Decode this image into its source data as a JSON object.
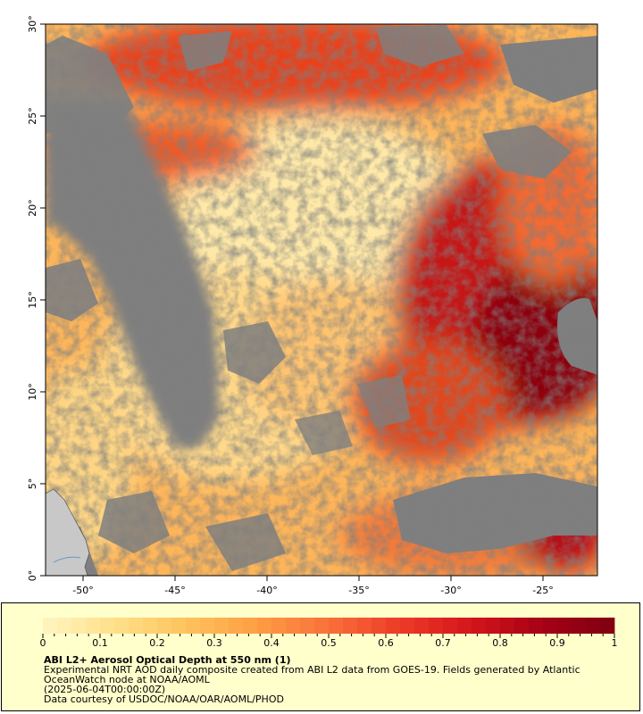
{
  "map": {
    "x_ticks": [
      "-50°",
      "-45°",
      "-40°",
      "-35°",
      "-30°",
      "-25°"
    ],
    "y_ticks": [
      "30°",
      "25°",
      "20°",
      "15°",
      "10°",
      "5°",
      "0°"
    ],
    "lon_range": [
      -52,
      -22
    ],
    "lat_range": [
      0,
      30
    ]
  },
  "colorbar": {
    "labels": [
      "0",
      "0.1",
      "0.2",
      "0.3",
      "0.4",
      "0.5",
      "0.6",
      "0.7",
      "0.8",
      "0.9",
      "1"
    ],
    "range": [
      0,
      1
    ]
  },
  "legend": {
    "title": "ABI L2+ Aerosol Optical Depth at 550 nm (1)",
    "description": "Experimental NRT AOD daily composite created from ABI L2 data from GOES-19. Fields generated by Atlantic OceanWatch node at NOAA/AOML",
    "date": "(2025-06-04T00:00:00Z)",
    "credit": "Data courtesy of USDOC/NOAA/OAR/AOML/PHOD"
  },
  "colors": {
    "no_data": "#7f7f7f",
    "land": "#c8c8c8",
    "background": "#ffffff",
    "legend_bg": "#ffffcc",
    "scale": [
      "#fff5c2",
      "#ffe08a",
      "#fec35c",
      "#fd9e44",
      "#f9703a",
      "#ec3b27",
      "#d4151b",
      "#a50015",
      "#7f0011"
    ]
  }
}
